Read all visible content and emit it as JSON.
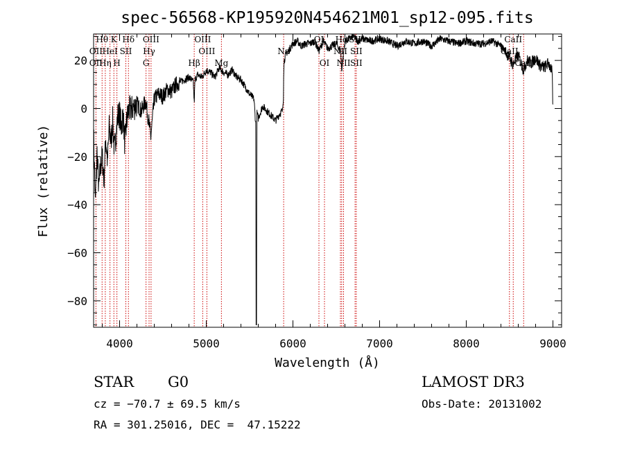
{
  "chart_data": {
    "type": "line",
    "title": "spec-56568-KP195920N454621M01_sp12-095.fits",
    "xlabel": "Wavelength (Å)",
    "ylabel": "Flux (relative)",
    "xlim": [
      3700,
      9100
    ],
    "ylim": [
      -91,
      31
    ],
    "xticks": [
      4000,
      5000,
      6000,
      7000,
      8000,
      9000
    ],
    "yticks": [
      -80,
      -60,
      -40,
      -20,
      0,
      20
    ],
    "grid": false,
    "series": [
      {
        "name": "flux",
        "x": [
          3700,
          3720,
          3740,
          3760,
          3780,
          3800,
          3820,
          3840,
          3860,
          3880,
          3900,
          3920,
          3940,
          3960,
          3980,
          4000,
          4020,
          4040,
          4060,
          4080,
          4100,
          4150,
          4200,
          4250,
          4300,
          4340,
          4360,
          4400,
          4450,
          4500,
          4550,
          4600,
          4650,
          4700,
          4750,
          4800,
          4850,
          4861,
          4870,
          4900,
          4950,
          5000,
          5050,
          5100,
          5150,
          5200,
          5250,
          5300,
          5350,
          5400,
          5450,
          5500,
          5550,
          5570,
          5577,
          5585,
          5600,
          5650,
          5700,
          5750,
          5800,
          5850,
          5880,
          5890,
          5893,
          5900,
          5920,
          5950,
          6000,
          6050,
          6100,
          6150,
          6200,
          6250,
          6300,
          6350,
          6400,
          6450,
          6500,
          6550,
          6563,
          6600,
          6650,
          6700,
          6750,
          6800,
          6900,
          7000,
          7100,
          7200,
          7300,
          7400,
          7500,
          7600,
          7700,
          7800,
          7900,
          8000,
          8100,
          8200,
          8300,
          8400,
          8450,
          8500,
          8542,
          8560,
          8600,
          8662,
          8700,
          8750,
          8800,
          8850,
          8900,
          8950,
          8990,
          9000
        ],
        "y": [
          -10,
          -40,
          -18,
          -34,
          -24,
          -20,
          -30,
          -12,
          -22,
          -8,
          -14,
          -5,
          -18,
          -10,
          -3,
          -2,
          -8,
          -2,
          -15,
          -6,
          -1,
          0,
          2,
          -1,
          3,
          -6,
          -12,
          4,
          6,
          5,
          8,
          7,
          10,
          11,
          12,
          13,
          11,
          2,
          12,
          14,
          13,
          16,
          15,
          13,
          17,
          15,
          14,
          16,
          13,
          12,
          9,
          6,
          4,
          -6,
          -90,
          -2,
          -4,
          1,
          -1,
          -3,
          -5,
          -2,
          -1,
          5,
          16,
          20,
          23,
          24,
          27,
          28,
          26,
          27,
          27,
          28,
          24,
          28,
          25,
          26,
          27,
          24,
          16,
          28,
          29,
          30,
          28,
          29,
          28,
          29,
          28,
          26,
          28,
          27,
          28,
          26,
          29,
          28,
          27,
          28,
          27,
          27,
          28,
          26,
          24,
          21,
          18,
          20,
          22,
          16,
          20,
          19,
          21,
          18,
          17,
          19,
          15,
          0
        ],
        "color": "#000000"
      }
    ],
    "line_markers": [
      {
        "name": "OII",
        "x": 3727
      },
      {
        "name": "Hθ",
        "x": 3798
      },
      {
        "name": "Hη",
        "x": 3835
      },
      {
        "name": "HeI",
        "x": 3889
      },
      {
        "name": "K",
        "x": 3934
      },
      {
        "name": "H",
        "x": 3969
      },
      {
        "name": "Hδ",
        "x": 4102
      },
      {
        "name": "SII",
        "x": 4072
      },
      {
        "name": "Hγ",
        "x": 4340
      },
      {
        "name": "G",
        "x": 4305
      },
      {
        "name": "OIII",
        "x": 4363
      },
      {
        "name": "Hβ",
        "x": 4861
      },
      {
        "name": "OIII",
        "x": 4959
      },
      {
        "name": "OIII",
        "x": 5007
      },
      {
        "name": "Mg",
        "x": 5175
      },
      {
        "name": "Na",
        "x": 5893
      },
      {
        "name": "OI",
        "x": 6300
      },
      {
        "name": "OI",
        "x": 6364
      },
      {
        "name": "Hα",
        "x": 6563
      },
      {
        "name": "NII",
        "x": 6548
      },
      {
        "name": "NII",
        "x": 6584
      },
      {
        "name": "SII",
        "x": 6717
      },
      {
        "name": "SII",
        "x": 6731
      },
      {
        "name": "CaII",
        "x": 8498
      },
      {
        "name": "CaII",
        "x": 8542
      },
      {
        "name": "CaII",
        "x": 8662
      }
    ],
    "marker_labels": [
      {
        "text": "Hθ",
        "x": 3798,
        "row": 0
      },
      {
        "text": "K",
        "x": 3934,
        "row": 0
      },
      {
        "text": "Hδ",
        "x": 4102,
        "row": 0
      },
      {
        "text": "OIII",
        "x": 4363,
        "row": 0
      },
      {
        "text": "OIII",
        "x": 4959,
        "row": 0
      },
      {
        "text": "OI",
        "x": 6300,
        "row": 0
      },
      {
        "text": "Hα",
        "x": 6563,
        "row": 0
      },
      {
        "text": "SII",
        "x": 6717,
        "row": 0
      },
      {
        "text": "CaII",
        "x": 8542,
        "row": 0
      },
      {
        "text": "OII",
        "x": 3727,
        "row": 1
      },
      {
        "text": "HeI",
        "x": 3889,
        "row": 1
      },
      {
        "text": "SII",
        "x": 4072,
        "row": 1
      },
      {
        "text": "Hγ",
        "x": 4340,
        "row": 1
      },
      {
        "text": "OIII",
        "x": 5007,
        "row": 1
      },
      {
        "text": "Na",
        "x": 5893,
        "row": 1
      },
      {
        "text": "NII",
        "x": 6548,
        "row": 1
      },
      {
        "text": "SII",
        "x": 6731,
        "row": 1
      },
      {
        "text": "CaII",
        "x": 8498,
        "row": 1
      },
      {
        "text": "OII",
        "x": 3727,
        "row": 2
      },
      {
        "text": "Hη",
        "x": 3835,
        "row": 2
      },
      {
        "text": "H",
        "x": 3969,
        "row": 2
      },
      {
        "text": "G",
        "x": 4305,
        "row": 2
      },
      {
        "text": "Hβ",
        "x": 4861,
        "row": 2
      },
      {
        "text": "Mg",
        "x": 5175,
        "row": 2
      },
      {
        "text": "OI",
        "x": 6364,
        "row": 2
      },
      {
        "text": "NII",
        "x": 6584,
        "row": 2
      },
      {
        "text": "SII",
        "x": 6731,
        "row": 2
      },
      {
        "text": "CaII",
        "x": 8662,
        "row": 2
      }
    ],
    "marker_color": "#cc0000"
  },
  "info": {
    "object_class": "STAR",
    "subclass": "G0",
    "survey": "LAMOST DR3",
    "cz": "cz = −70.7 ± 69.5 km/s",
    "obs_date": "Obs-Date: 20131002",
    "coords": "RA = 301.25016, DEC =  47.15222"
  }
}
